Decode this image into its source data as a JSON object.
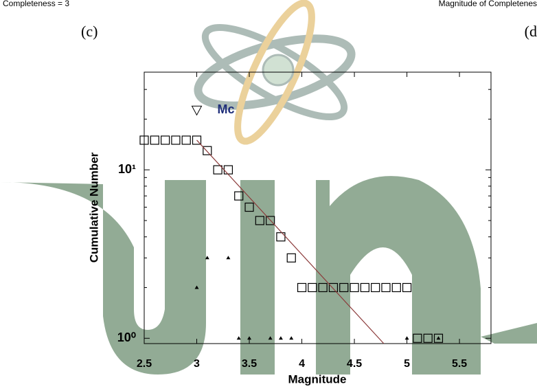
{
  "header": {
    "left_caption": "Completeness = 3",
    "right_caption": "Magnitude of Completenes",
    "panel_c": "(c)",
    "panel_d": "(d"
  },
  "chart_data": {
    "type": "scatter",
    "xlabel": "Magnitude",
    "ylabel": "Cumulative Number",
    "xlim": [
      2.5,
      5.8
    ],
    "ylim": [
      0.93,
      38
    ],
    "ylog": true,
    "xticks": [
      2.5,
      3,
      3.5,
      4,
      4.5,
      5,
      5.5
    ],
    "yticks": [
      {
        "value": 1,
        "label": "10⁰"
      },
      {
        "value": 10,
        "label": "10¹"
      }
    ],
    "minor_yticks": [
      2,
      3,
      4,
      5,
      6,
      7,
      8,
      9,
      20,
      30
    ],
    "series": [
      {
        "marker": "square",
        "color": "#000000",
        "x": [
          2.5,
          2.6,
          2.7,
          2.8,
          2.9,
          3.0,
          3.1,
          3.2,
          3.3,
          3.4,
          3.5,
          3.6,
          3.7,
          3.8,
          3.9,
          4.0,
          4.1,
          4.2,
          4.3,
          4.4,
          4.5,
          4.6,
          4.7,
          4.8,
          4.9,
          5.0,
          5.1,
          5.2,
          5.3
        ],
        "values": [
          15,
          15,
          15,
          15,
          15,
          15,
          13,
          10,
          10,
          7,
          6,
          5,
          5,
          4,
          3,
          2,
          2,
          2,
          2,
          2,
          2,
          2,
          2,
          2,
          2,
          2,
          1,
          1,
          1
        ]
      },
      {
        "marker": "triangle",
        "color": "#000000",
        "x": [
          3.0,
          3.1,
          3.3,
          3.4,
          3.5,
          3.7,
          3.8,
          3.9,
          5.0,
          5.3
        ],
        "values": [
          2,
          3,
          3,
          1,
          1,
          1,
          1,
          1,
          1,
          1
        ]
      },
      {
        "marker": "line",
        "color": "#8b3a3a",
        "x": [
          3.0,
          4.78
        ],
        "values": [
          15,
          0.93
        ]
      }
    ],
    "annotation": {
      "text": "Mc",
      "x": 3.0,
      "y": 22.6,
      "color": "#1f2f7a"
    }
  }
}
